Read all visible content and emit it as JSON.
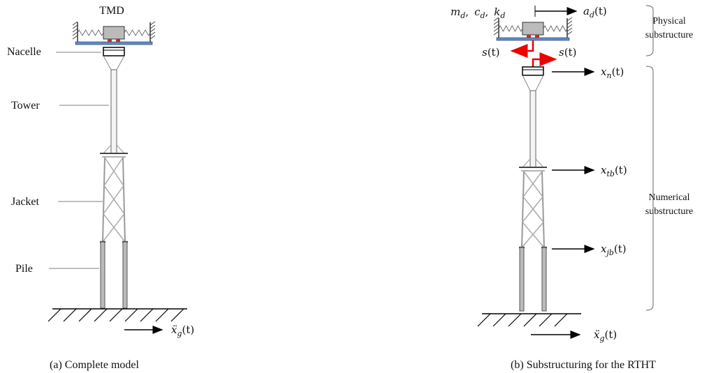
{
  "left": {
    "tmd": "TMD",
    "nacelle": "Nacelle",
    "tower": "Tower",
    "jacket": "Jacket",
    "pile": "Pile",
    "ground_accel": {
      "base": "ẍ",
      "sub": "g",
      "arg": "(t)"
    },
    "caption": "(a) Complete model"
  },
  "right": {
    "damper_params": [
      {
        "base": "m",
        "sub": "d",
        "arg": ","
      },
      {
        "base": "c",
        "sub": "d",
        "arg": ","
      },
      {
        "base": "k",
        "sub": "d"
      }
    ],
    "damper_accel": {
      "base": "a",
      "sub": "d",
      "arg": "(t)"
    },
    "physical": [
      "Physical",
      "substructure"
    ],
    "force_left": {
      "base": "s",
      "arg": "(t)"
    },
    "force_right": {
      "base": "s",
      "arg": "(t)"
    },
    "displacements": [
      {
        "base": "x",
        "sub": "n",
        "arg": "(t)"
      },
      {
        "base": "x",
        "sub": "tb",
        "arg": "(t)"
      },
      {
        "base": "x",
        "sub": "jb",
        "arg": "(t)"
      }
    ],
    "numerical": [
      "Numerical",
      "substructure"
    ],
    "ground_accel": {
      "base": "ẍ",
      "sub": "g",
      "arg": "(t)"
    },
    "caption": "(b) Substructuring for the RTHT"
  }
}
